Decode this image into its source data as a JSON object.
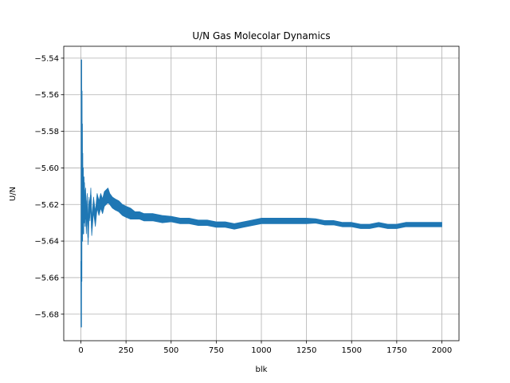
{
  "chart_data": {
    "type": "line",
    "title": "U/N Gas Molecolar Dynamics",
    "xlabel": "blk",
    "ylabel": "U/N",
    "xlim": [
      -95,
      2095
    ],
    "ylim": [
      -5.6945,
      -5.5335
    ],
    "grid": true,
    "xticks": [
      0,
      250,
      500,
      750,
      1000,
      1250,
      1500,
      1750,
      2000
    ],
    "xtick_labels": [
      "0",
      "250",
      "500",
      "750",
      "1000",
      "1250",
      "1500",
      "1750",
      "2000"
    ],
    "yticks": [
      -5.68,
      -5.66,
      -5.64,
      -5.62,
      -5.6,
      -5.58,
      -5.56,
      -5.54
    ],
    "ytick_labels": [
      "−5.68",
      "−5.66",
      "−5.64",
      "−5.62",
      "−5.60",
      "−5.58",
      "−5.56",
      "−5.54"
    ],
    "series": [
      {
        "color": "#1f77b4",
        "x": [
          1,
          2,
          3,
          4,
          5,
          6,
          7,
          8,
          9,
          10,
          12,
          14,
          16,
          18,
          20,
          23,
          26,
          30,
          35,
          40,
          45,
          50,
          55,
          60,
          70,
          80,
          90,
          100,
          110,
          120,
          130,
          140,
          150,
          160,
          175,
          190,
          210,
          230,
          250,
          275,
          300,
          325,
          350,
          375,
          400,
          450,
          500,
          550,
          600,
          650,
          700,
          750,
          800,
          850,
          900,
          950,
          1000,
          1050,
          1100,
          1150,
          1200,
          1250,
          1300,
          1350,
          1400,
          1450,
          1500,
          1550,
          1600,
          1650,
          1700,
          1750,
          1800,
          1850,
          1900,
          1950,
          2000
        ],
        "values": [
          -5.651,
          -5.687,
          -5.541,
          -5.662,
          -5.558,
          -5.632,
          -5.576,
          -5.64,
          -5.592,
          -5.618,
          -5.6,
          -5.636,
          -5.605,
          -5.63,
          -5.612,
          -5.628,
          -5.615,
          -5.632,
          -5.618,
          -5.638,
          -5.62,
          -5.625,
          -5.615,
          -5.633,
          -5.62,
          -5.628,
          -5.618,
          -5.622,
          -5.618,
          -5.621,
          -5.617,
          -5.616,
          -5.615,
          -5.617,
          -5.619,
          -5.62,
          -5.621,
          -5.623,
          -5.624,
          -5.625,
          -5.626,
          -5.626,
          -5.627,
          -5.627,
          -5.627,
          -5.628,
          -5.628,
          -5.629,
          -5.629,
          -5.63,
          -5.63,
          -5.631,
          -5.631,
          -5.632,
          -5.631,
          -5.63,
          -5.629,
          -5.629,
          -5.629,
          -5.629,
          -5.629,
          -5.629,
          -5.629,
          -5.63,
          -5.63,
          -5.631,
          -5.631,
          -5.632,
          -5.632,
          -5.631,
          -5.632,
          -5.632,
          -5.631,
          -5.631,
          -5.631,
          -5.631,
          -5.631
        ],
        "band_halfwidth": [
          0.0,
          0.0,
          0.0,
          0.0,
          0.0,
          0.0,
          0.0,
          0.0,
          0.0,
          0.0,
          0.0,
          0.0,
          0.0,
          0.0,
          0.004,
          0.004,
          0.004,
          0.004,
          0.004,
          0.004,
          0.004,
          0.004,
          0.004,
          0.004,
          0.004,
          0.004,
          0.004,
          0.004,
          0.004,
          0.004,
          0.004,
          0.004,
          0.004,
          0.003,
          0.003,
          0.003,
          0.003,
          0.003,
          0.003,
          0.003,
          0.002,
          0.002,
          0.002,
          0.002,
          0.002,
          0.002,
          0.0015,
          0.0015,
          0.0015,
          0.0015,
          0.0015,
          0.0015,
          0.0015,
          0.0015,
          0.0015,
          0.0015,
          0.0015,
          0.0015,
          0.0015,
          0.0015,
          0.0015,
          0.0015,
          0.0012,
          0.0012,
          0.0012,
          0.0012,
          0.0012,
          0.0012,
          0.0012,
          0.0012,
          0.0012,
          0.0012,
          0.0012,
          0.0012,
          0.0012,
          0.0012,
          0.0012
        ]
      }
    ]
  }
}
